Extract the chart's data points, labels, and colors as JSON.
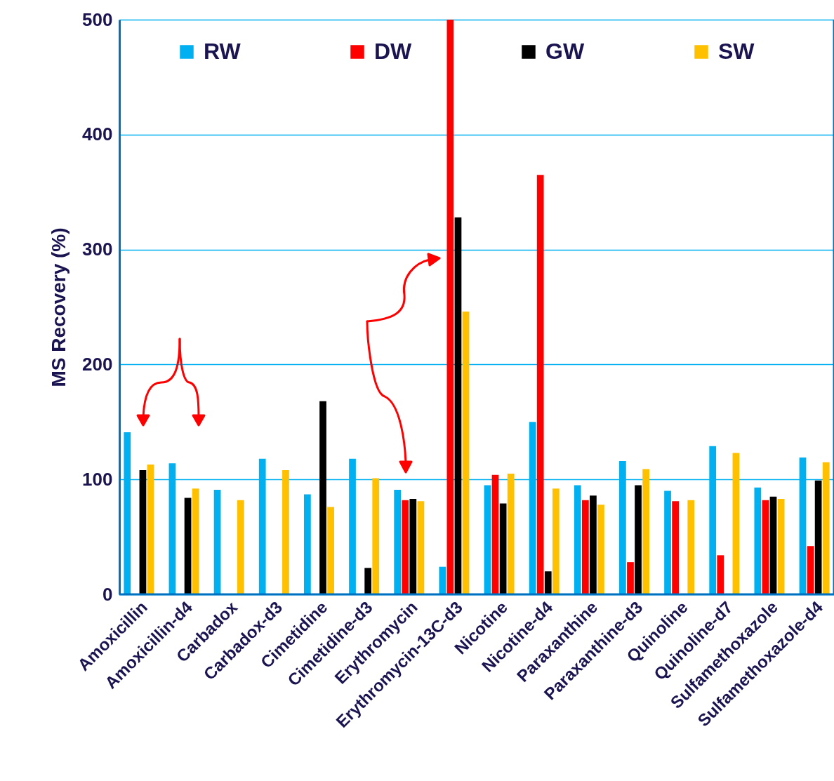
{
  "chart_data": {
    "type": "bar",
    "ylabel": "MS Recovery (%)",
    "categories": [
      "Amoxicillin",
      "Amoxicillin-d4",
      "Carbadox",
      "Carbadox-d3",
      "Cimetidine",
      "Cimetidine-d3",
      "Erythromycin",
      "Erythromycin-13C-d3",
      "Nicotine",
      "Nicotine-d4",
      "Paraxanthine",
      "Paraxanthine-d3",
      "Quinoline",
      "Quinoline-d7",
      "Sulfamethoxazole",
      "Sulfamethoxazole-d4"
    ],
    "series": [
      {
        "name": "RW",
        "color": "#00b0f0",
        "values": [
          141,
          114,
          91,
          118,
          87,
          118,
          91,
          24,
          95,
          150,
          95,
          116,
          90,
          129,
          93,
          119
        ]
      },
      {
        "name": "DW",
        "color": "#ff0000",
        "values": [
          null,
          null,
          null,
          null,
          null,
          null,
          82,
          500,
          104,
          365,
          82,
          28,
          81,
          34,
          82,
          42
        ]
      },
      {
        "name": "GW",
        "color": "#000000",
        "values": [
          108,
          84,
          null,
          null,
          168,
          23,
          83,
          328,
          79,
          20,
          86,
          95,
          null,
          null,
          85,
          99
        ]
      },
      {
        "name": "SW",
        "color": "#ffc000",
        "values": [
          113,
          92,
          82,
          108,
          76,
          101,
          81,
          246,
          105,
          92,
          78,
          109,
          82,
          123,
          83,
          115
        ]
      }
    ],
    "ylim": [
      0,
      500
    ],
    "yticks": [
      0,
      100,
      200,
      300,
      400,
      500
    ],
    "grid": "y",
    "legend": "top"
  }
}
